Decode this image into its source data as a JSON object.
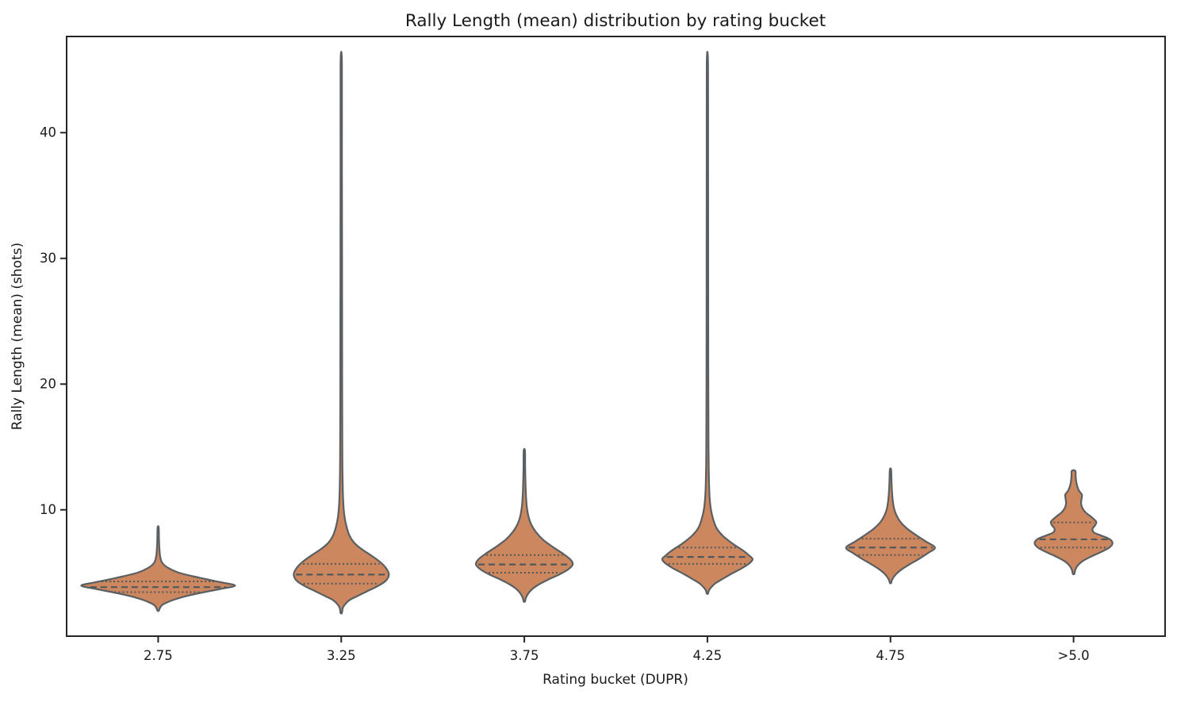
{
  "style": {
    "violin_fill": "#cd875f",
    "violin_edge": "#595f62",
    "quartile_line": "#50585c",
    "spine_color": "#262626",
    "text_color": "#1a1a1a",
    "background": "#ffffff"
  },
  "chart_data": {
    "type": "violin",
    "title": "Rally Length (mean) distribution by rating bucket",
    "xlabel": "Rating bucket (DUPR)",
    "ylabel": "Rally Length (mean) (shots)",
    "categories": [
      "2.75",
      "3.25",
      "3.75",
      "4.25",
      "4.75",
      ">5.0"
    ],
    "y_ticks": [
      10,
      20,
      30,
      40
    ],
    "ylim": [
      -0.05,
      47.65
    ],
    "grid": false,
    "legend": "none",
    "inner": "quartiles",
    "series": [
      {
        "category": "2.75",
        "q1": 3.45,
        "median": 3.85,
        "q3": 4.3,
        "kde_min": 2.0,
        "kde_max": 8.6,
        "profile": [
          [
            8.6,
            0.7
          ],
          [
            7.8,
            1.0
          ],
          [
            7.0,
            1.5
          ],
          [
            6.3,
            2.5
          ],
          [
            5.8,
            5
          ],
          [
            5.4,
            12
          ],
          [
            5.0,
            26
          ],
          [
            4.6,
            52
          ],
          [
            4.25,
            78
          ],
          [
            3.97,
            97
          ],
          [
            3.7,
            78
          ],
          [
            3.45,
            58
          ],
          [
            3.15,
            36
          ],
          [
            2.85,
            20
          ],
          [
            2.6,
            10
          ],
          [
            2.4,
            4.5
          ],
          [
            2.15,
            2
          ],
          [
            1.97,
            0.8
          ]
        ]
      },
      {
        "category": "3.25",
        "q1": 4.13,
        "median": 4.85,
        "q3": 5.7,
        "kde_min": 1.8,
        "kde_max": 45.5,
        "profile": [
          [
            45.5,
            0.8
          ],
          [
            38,
            0.9
          ],
          [
            30,
            1.0
          ],
          [
            22,
            1.1
          ],
          [
            15,
            1.3
          ],
          [
            12,
            1.8
          ],
          [
            10.5,
            2.6
          ],
          [
            9.5,
            4
          ],
          [
            8.7,
            6.5
          ],
          [
            8.0,
            10
          ],
          [
            7.4,
            16
          ],
          [
            6.9,
            25
          ],
          [
            6.4,
            37
          ],
          [
            5.9,
            48
          ],
          [
            5.4,
            56
          ],
          [
            4.85,
            60
          ],
          [
            4.35,
            56
          ],
          [
            3.9,
            45
          ],
          [
            3.5,
            32
          ],
          [
            3.1,
            19
          ],
          [
            2.8,
            10
          ],
          [
            2.5,
            5
          ],
          [
            2.2,
            2
          ],
          [
            1.8,
            0.8
          ]
        ]
      },
      {
        "category": "3.75",
        "q1": 5.0,
        "median": 5.65,
        "q3": 6.4,
        "kde_min": 2.7,
        "kde_max": 14.7,
        "profile": [
          [
            14.7,
            0.8
          ],
          [
            13.5,
            1.0
          ],
          [
            12.3,
            1.4
          ],
          [
            11.2,
            2
          ],
          [
            10.2,
            3.2
          ],
          [
            9.4,
            5.5
          ],
          [
            8.8,
            9
          ],
          [
            8.2,
            15
          ],
          [
            7.6,
            24
          ],
          [
            7.0,
            37
          ],
          [
            6.5,
            49
          ],
          [
            6.05,
            58
          ],
          [
            5.65,
            61
          ],
          [
            5.25,
            55
          ],
          [
            4.85,
            44
          ],
          [
            4.45,
            30
          ],
          [
            4.05,
            18
          ],
          [
            3.7,
            10
          ],
          [
            3.35,
            5
          ],
          [
            3.0,
            2
          ],
          [
            2.71,
            0.8
          ]
        ]
      },
      {
        "category": "4.25",
        "q1": 5.7,
        "median": 6.25,
        "q3": 7.0,
        "kde_min": 3.3,
        "kde_max": 45.5,
        "profile": [
          [
            45.5,
            0.8
          ],
          [
            38,
            0.9
          ],
          [
            30,
            1.0
          ],
          [
            22,
            1.1
          ],
          [
            15,
            1.4
          ],
          [
            12.5,
            1.9
          ],
          [
            11,
            2.8
          ],
          [
            10,
            4.5
          ],
          [
            9.2,
            7.5
          ],
          [
            8.5,
            12
          ],
          [
            7.9,
            20
          ],
          [
            7.3,
            32
          ],
          [
            6.8,
            44
          ],
          [
            6.4,
            52
          ],
          [
            6.07,
            57
          ],
          [
            5.7,
            52
          ],
          [
            5.3,
            42
          ],
          [
            4.9,
            30
          ],
          [
            4.5,
            19
          ],
          [
            4.15,
            10
          ],
          [
            3.85,
            5
          ],
          [
            3.6,
            2
          ],
          [
            3.34,
            0.8
          ]
        ]
      },
      {
        "category": "4.75",
        "q1": 6.4,
        "median": 7.0,
        "q3": 7.7,
        "kde_min": 4.2,
        "kde_max": 13.2,
        "profile": [
          [
            13.2,
            0.8
          ],
          [
            12.4,
            1.2
          ],
          [
            11.6,
            1.8
          ],
          [
            10.8,
            2.8
          ],
          [
            10.1,
            4.5
          ],
          [
            9.5,
            8
          ],
          [
            9.0,
            13
          ],
          [
            8.5,
            21
          ],
          [
            8.0,
            32
          ],
          [
            7.5,
            44
          ],
          [
            7.0,
            56
          ],
          [
            6.55,
            47
          ],
          [
            6.1,
            36
          ],
          [
            5.7,
            25
          ],
          [
            5.3,
            15
          ],
          [
            4.95,
            8
          ],
          [
            4.65,
            4
          ],
          [
            4.4,
            1.8
          ],
          [
            4.18,
            0.8
          ]
        ]
      },
      {
        "category": ">5.0",
        "q1": 7.0,
        "median": 7.65,
        "q3": 9.0,
        "kde_min": 4.9,
        "kde_max": 13.1,
        "profile": [
          [
            13.1,
            2.2
          ],
          [
            12.7,
            2.6
          ],
          [
            12.3,
            3.2
          ],
          [
            11.9,
            4.5
          ],
          [
            11.5,
            7
          ],
          [
            11.2,
            10.5
          ],
          [
            10.85,
            10
          ],
          [
            10.5,
            9.5
          ],
          [
            10.15,
            11
          ],
          [
            9.8,
            15
          ],
          [
            9.45,
            22
          ],
          [
            9.05,
            28.5
          ],
          [
            8.75,
            27
          ],
          [
            8.5,
            24
          ],
          [
            8.2,
            25.5
          ],
          [
            7.95,
            35
          ],
          [
            7.65,
            46
          ],
          [
            7.3,
            49
          ],
          [
            6.95,
            44
          ],
          [
            6.6,
            33
          ],
          [
            6.25,
            21
          ],
          [
            5.9,
            11
          ],
          [
            5.55,
            5
          ],
          [
            5.2,
            2
          ],
          [
            4.91,
            1
          ]
        ]
      }
    ]
  }
}
